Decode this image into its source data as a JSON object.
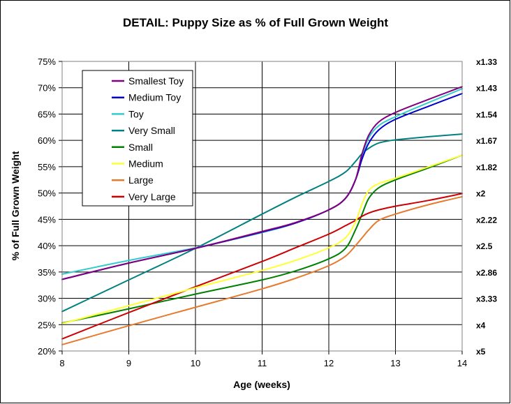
{
  "chart_data": {
    "type": "line",
    "title": "DETAIL: Puppy Size as % of Full Grown Weight",
    "xlabel": "Age (weeks)",
    "ylabel": "% of Full Grown Weight",
    "xlim": [
      8,
      14
    ],
    "ylim": [
      20,
      75
    ],
    "x_ticks": [
      "8",
      "9",
      "10",
      "11",
      "12",
      "13",
      "14"
    ],
    "y_ticks": [
      "20%",
      "25%",
      "30%",
      "35%",
      "40%",
      "45%",
      "50%",
      "55%",
      "60%",
      "65%",
      "70%",
      "75%"
    ],
    "right_axis_labels": [
      {
        "value": 75,
        "label": "x1.33"
      },
      {
        "value": 70,
        "label": "x1.43"
      },
      {
        "value": 65,
        "label": "x1.54"
      },
      {
        "value": 60,
        "label": "x1.67"
      },
      {
        "value": 55,
        "label": "x1.82"
      },
      {
        "value": 50,
        "label": "x2"
      },
      {
        "value": 45,
        "label": "x2.22"
      },
      {
        "value": 40,
        "label": "x2.5"
      },
      {
        "value": 35,
        "label": "x2.86"
      },
      {
        "value": 30,
        "label": "x3.33"
      },
      {
        "value": 25,
        "label": "x4"
      },
      {
        "value": 20,
        "label": "x5"
      }
    ],
    "grid": true,
    "legend_position": "top-left",
    "series": [
      {
        "name": "Smallest Toy",
        "color": "#800080",
        "points": [
          [
            8,
            33.6
          ],
          [
            9,
            36.7
          ],
          [
            10,
            39.5
          ],
          [
            11,
            42.7
          ],
          [
            11.5,
            44.4
          ],
          [
            12,
            46.8
          ],
          [
            12.25,
            49.0
          ],
          [
            12.4,
            52.5
          ],
          [
            12.5,
            57.5
          ],
          [
            12.6,
            61.0
          ],
          [
            12.75,
            63.5
          ],
          [
            13,
            65.3
          ],
          [
            13.5,
            67.8
          ],
          [
            14,
            70.2
          ]
        ]
      },
      {
        "name": "Medium Toy",
        "color": "#0000CC",
        "points": [
          [
            8,
            33.6
          ],
          [
            9,
            36.7
          ],
          [
            10,
            39.5
          ],
          [
            11,
            42.6
          ],
          [
            11.5,
            44.3
          ],
          [
            12,
            46.8
          ],
          [
            12.25,
            49.0
          ],
          [
            12.4,
            52.5
          ],
          [
            12.5,
            56.5
          ],
          [
            12.6,
            59.5
          ],
          [
            12.75,
            62.0
          ],
          [
            13,
            64.0
          ],
          [
            13.5,
            66.5
          ],
          [
            14,
            68.9
          ]
        ]
      },
      {
        "name": "Toy",
        "color": "#33CCCC",
        "points": [
          [
            8,
            34.6
          ],
          [
            9,
            37.2
          ],
          [
            10,
            39.6
          ],
          [
            11,
            42.5
          ],
          [
            11.5,
            44.3
          ],
          [
            12,
            46.8
          ],
          [
            12.25,
            49.0
          ],
          [
            12.4,
            52.5
          ],
          [
            12.5,
            57.0
          ],
          [
            12.6,
            60.5
          ],
          [
            12.75,
            62.8
          ],
          [
            13,
            64.5
          ],
          [
            13.5,
            67.2
          ],
          [
            14,
            69.8
          ]
        ]
      },
      {
        "name": "Very Small",
        "color": "#008080",
        "points": [
          [
            8,
            27.5
          ],
          [
            9,
            33.5
          ],
          [
            10,
            39.5
          ],
          [
            11,
            46.0
          ],
          [
            11.5,
            49.2
          ],
          [
            12,
            52.2
          ],
          [
            12.25,
            54.0
          ],
          [
            12.4,
            56.0
          ],
          [
            12.5,
            57.5
          ],
          [
            12.6,
            58.5
          ],
          [
            12.75,
            59.5
          ],
          [
            13,
            60.1
          ],
          [
            13.5,
            60.7
          ],
          [
            14,
            61.2
          ]
        ]
      },
      {
        "name": "Small",
        "color": "#008000",
        "points": [
          [
            8,
            25.3
          ],
          [
            9,
            28.0
          ],
          [
            10,
            30.8
          ],
          [
            11,
            33.5
          ],
          [
            11.5,
            35.2
          ],
          [
            12,
            37.5
          ],
          [
            12.25,
            39.5
          ],
          [
            12.4,
            43.0
          ],
          [
            12.5,
            46.0
          ],
          [
            12.6,
            49.0
          ],
          [
            12.75,
            51.0
          ],
          [
            13,
            52.5
          ],
          [
            13.5,
            54.8
          ],
          [
            14,
            57.2
          ]
        ]
      },
      {
        "name": "Medium",
        "color": "#FFFF33",
        "points": [
          [
            8,
            25.2
          ],
          [
            9,
            28.6
          ],
          [
            10,
            32.0
          ],
          [
            11,
            35.3
          ],
          [
            11.5,
            37.2
          ],
          [
            12,
            39.6
          ],
          [
            12.25,
            41.5
          ],
          [
            12.4,
            44.5
          ],
          [
            12.5,
            48.0
          ],
          [
            12.6,
            50.5
          ],
          [
            12.75,
            51.8
          ],
          [
            13,
            52.8
          ],
          [
            13.5,
            55.0
          ],
          [
            14,
            57.2
          ]
        ]
      },
      {
        "name": "Large",
        "color": "#E67A2E",
        "points": [
          [
            8,
            21.2
          ],
          [
            9,
            24.8
          ],
          [
            10,
            28.3
          ],
          [
            11,
            31.8
          ],
          [
            11.5,
            33.8
          ],
          [
            12,
            36.2
          ],
          [
            12.25,
            38.0
          ],
          [
            12.4,
            40.0
          ],
          [
            12.5,
            41.5
          ],
          [
            12.6,
            43.0
          ],
          [
            12.75,
            44.8
          ],
          [
            13,
            46.0
          ],
          [
            13.5,
            47.8
          ],
          [
            14,
            49.3
          ]
        ]
      },
      {
        "name": "Very Large",
        "color": "#CC0000",
        "points": [
          [
            8,
            22.3
          ],
          [
            9,
            27.3
          ],
          [
            10,
            32.2
          ],
          [
            11,
            37.0
          ],
          [
            11.5,
            39.6
          ],
          [
            12,
            42.2
          ],
          [
            12.25,
            43.8
          ],
          [
            12.4,
            44.8
          ],
          [
            12.5,
            45.6
          ],
          [
            12.6,
            46.2
          ],
          [
            12.75,
            46.8
          ],
          [
            13,
            47.5
          ],
          [
            13.5,
            48.6
          ],
          [
            14,
            49.9
          ]
        ]
      }
    ]
  }
}
